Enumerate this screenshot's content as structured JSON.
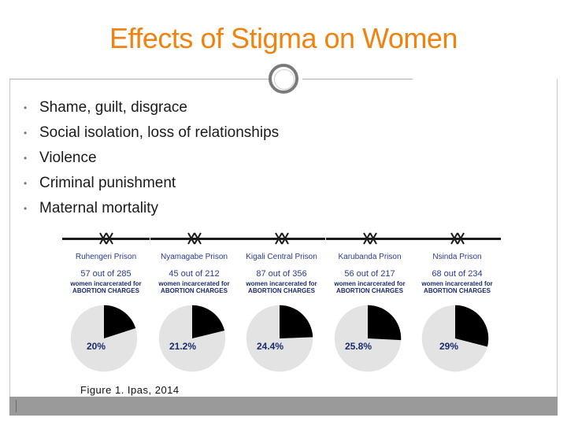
{
  "slide": {
    "title": "Effects of Stigma on Women",
    "bullets": [
      "Shame, guilt, disgrace",
      "Social isolation, loss of relationships",
      "Violence",
      "Criminal punishment",
      "Maternal mortality"
    ],
    "figure_caption": "Figure 1. Ipas, 2014",
    "colors": {
      "title": "#f0820f",
      "footer": "#9a9a9a",
      "label": "#2a3a8c"
    }
  },
  "chart_data": {
    "type": "pie",
    "title": "",
    "caption_line1": "women incarcerated for",
    "caption_line2": "ABORTION CHARGES",
    "series": [
      {
        "name": "Ruhengeri Prison",
        "count": "57 out of 285",
        "value": 20,
        "label": "20%"
      },
      {
        "name": "Nyamagabe Prison",
        "count": "45 out of 212",
        "value": 21.2,
        "label": "21.2%"
      },
      {
        "name": "Kigali Central Prison",
        "count": "87 out of 356",
        "value": 24.4,
        "label": "24.4%"
      },
      {
        "name": "Karubanda Prison",
        "count": "56 out of 217",
        "value": 25.8,
        "label": "25.8%"
      },
      {
        "name": "Nsinda Prison",
        "count": "68 out of 234",
        "value": 29,
        "label": "29%"
      }
    ]
  }
}
